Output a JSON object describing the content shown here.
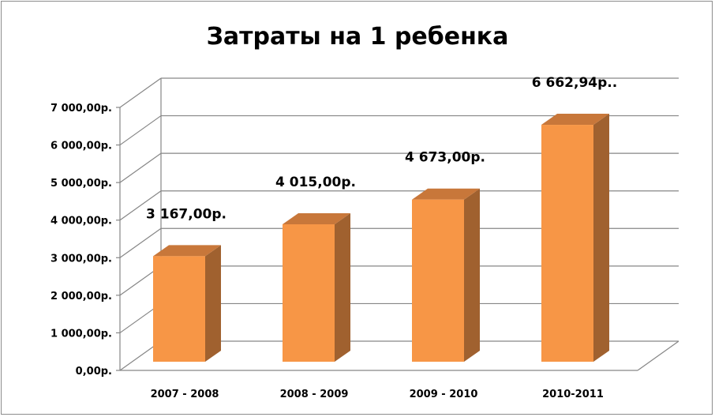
{
  "chart_data": {
    "type": "bar",
    "title": "Затраты на 1 ребенка",
    "categories": [
      "2007 - 2008",
      "2008 - 2009",
      "2009 - 2010",
      "2010-2011"
    ],
    "values": [
      3167.0,
      4015.0,
      4673.0,
      6662.94
    ],
    "data_labels": [
      "3 167,00р.",
      "4 015,00р.",
      "4 673,00р.",
      "6 662,94р.."
    ],
    "ylim": [
      0,
      7000
    ],
    "y_ticks": [
      0,
      1000,
      2000,
      3000,
      4000,
      5000,
      6000,
      7000
    ],
    "y_tick_labels": [
      "0,00р.",
      "1 000,00р.",
      "2 000,00р.",
      "3 000,00р.",
      "4 000,00р.",
      "5 000,00р.",
      "6 000,00р.",
      "7 000,00р."
    ],
    "grid": true,
    "legend": "none",
    "style": "3d-column",
    "colors": {
      "bar_front": "#F79646",
      "bar_top": "#C8773A",
      "bar_side": "#A0612F",
      "gridline": "#868686",
      "frame": "#8c8c8c"
    }
  }
}
